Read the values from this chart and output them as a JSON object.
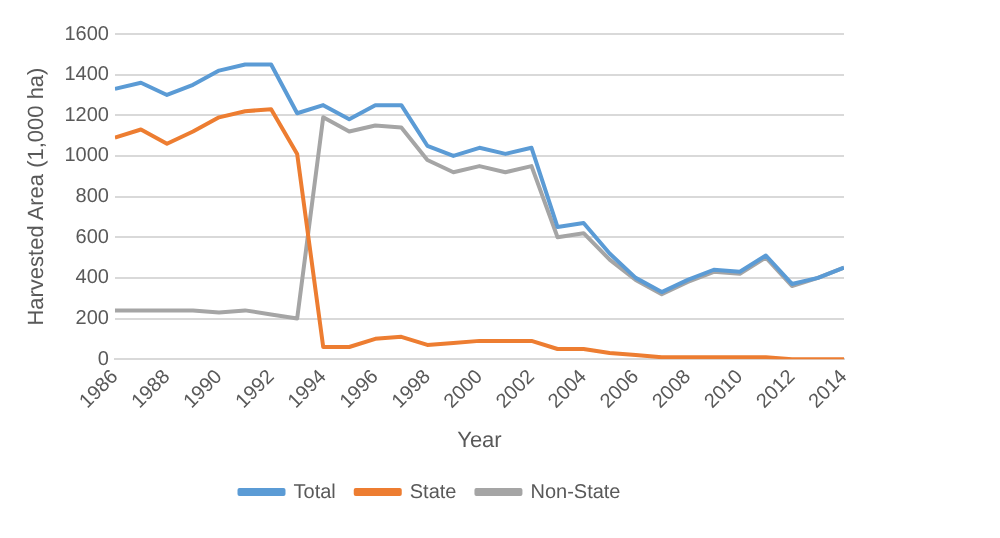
{
  "chart_data": {
    "type": "line",
    "xlabel": "Year",
    "ylabel": "Harvested Area (1,000 ha)",
    "x": [
      1986,
      1987,
      1988,
      1989,
      1990,
      1991,
      1992,
      1993,
      1994,
      1995,
      1996,
      1997,
      1998,
      1999,
      2000,
      2001,
      2002,
      2003,
      2004,
      2005,
      2006,
      2007,
      2008,
      2009,
      2010,
      2011,
      2012,
      2013,
      2014
    ],
    "series": [
      {
        "name": "Total",
        "color": "#5b9bd5",
        "values": [
          1330,
          1360,
          1300,
          1350,
          1420,
          1450,
          1450,
          1210,
          1250,
          1180,
          1250,
          1250,
          1050,
          1000,
          1040,
          1010,
          1040,
          650,
          670,
          520,
          400,
          330,
          390,
          440,
          430,
          510,
          370,
          400,
          450
        ]
      },
      {
        "name": "State",
        "color": "#ed7d31",
        "values": [
          1090,
          1130,
          1060,
          1120,
          1190,
          1220,
          1230,
          1010,
          60,
          60,
          100,
          110,
          70,
          80,
          90,
          90,
          90,
          50,
          50,
          30,
          20,
          10,
          10,
          10,
          10,
          10,
          0,
          0,
          0
        ]
      },
      {
        "name": "Non-State",
        "color": "#a5a5a5",
        "values": [
          240,
          240,
          240,
          240,
          230,
          240,
          220,
          200,
          1190,
          1120,
          1150,
          1140,
          980,
          920,
          950,
          920,
          950,
          600,
          620,
          490,
          390,
          320,
          380,
          430,
          420,
          500,
          360,
          400,
          450
        ]
      }
    ],
    "xlim": [
      1986,
      2014
    ],
    "xticks": [
      1986,
      1988,
      1990,
      1992,
      1994,
      1996,
      1998,
      2000,
      2002,
      2004,
      2006,
      2008,
      2010,
      2012,
      2014
    ],
    "ylim": [
      0,
      1600
    ],
    "yticks": [
      0,
      200,
      400,
      600,
      800,
      1000,
      1200,
      1400,
      1600
    ],
    "grid": "y",
    "legend": "bottom",
    "marker": "none",
    "line_style": "solid"
  }
}
